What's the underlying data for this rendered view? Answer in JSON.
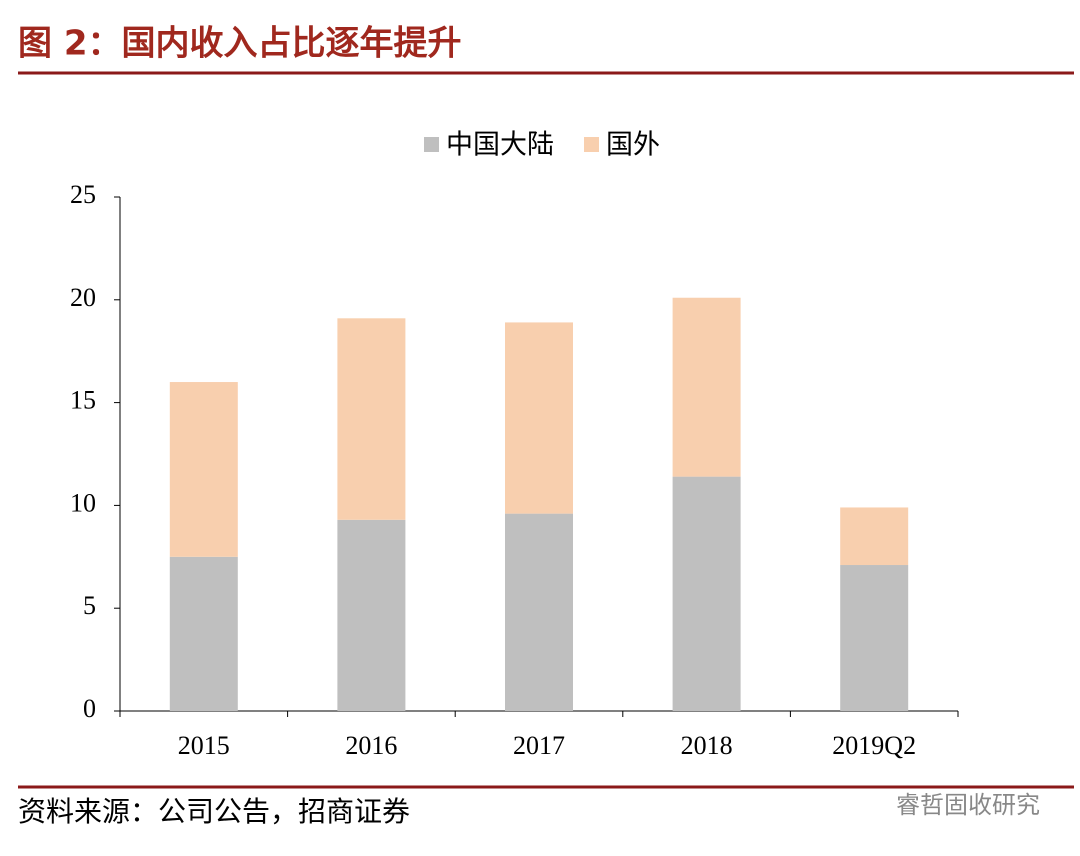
{
  "chart_data": {
    "type": "stacked_bar",
    "title": "图 2：国内收入占比逐年提升",
    "categories": [
      "2015",
      "2016",
      "2017",
      "2018",
      "2019Q2"
    ],
    "series": [
      {
        "name": "中国大陆",
        "color": "#bfbfbf",
        "values": [
          7.5,
          9.3,
          9.6,
          11.4,
          7.1
        ]
      },
      {
        "name": "国外",
        "color": "#f8cfae",
        "values": [
          8.5,
          9.8,
          9.3,
          8.7,
          2.8
        ]
      }
    ],
    "ylim": [
      0,
      25
    ],
    "yticks": [
      0,
      5,
      10,
      15,
      20,
      25
    ],
    "grid": false,
    "legend": "top",
    "source": "资料来源：公司公告，招商证券",
    "watermark": "睿哲固收研究"
  }
}
